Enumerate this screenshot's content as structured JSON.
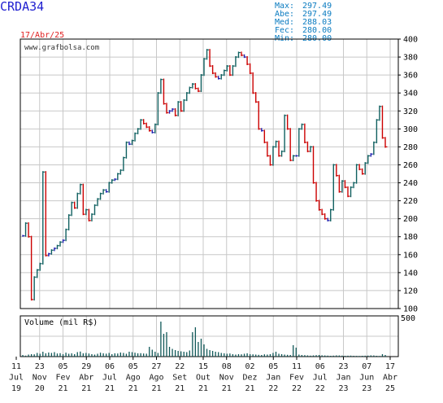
{
  "header": {
    "ticker": "CRDA34",
    "date": "17/Abr/25",
    "website": "www.grafbolsa.com",
    "stats": [
      {
        "label": "Max:",
        "value": "297.49"
      },
      {
        "label": "Abe:",
        "value": "297.49"
      },
      {
        "label": "Med:",
        "value": "288.03"
      },
      {
        "label": "Fec:",
        "value": "280.00"
      },
      {
        "label": "Min:",
        "value": "280.00"
      }
    ]
  },
  "colors": {
    "up": "#106060",
    "mid": "#2020b0",
    "down": "#cc0000",
    "grid": "#c8c8c8",
    "volume": "#105858",
    "ticker": "#1f1fd0",
    "stats": "#0a7bc0"
  },
  "chart_data": {
    "type": "line",
    "y_axis": {
      "min": 100,
      "max": 400,
      "ticks": [
        "100",
        "120",
        "140",
        "160",
        "180",
        "200",
        "220",
        "240",
        "260",
        "280",
        "300",
        "320",
        "340",
        "360",
        "380",
        "400"
      ]
    },
    "x_axis": {
      "ticks": [
        {
          "day": "11",
          "month": "Jul",
          "year": "19"
        },
        {
          "day": "23",
          "month": "Nov",
          "year": "20"
        },
        {
          "day": "05",
          "month": "Fev",
          "year": "21"
        },
        {
          "day": "29",
          "month": "Abr",
          "year": "21"
        },
        {
          "day": "06",
          "month": "Jul",
          "year": "21"
        },
        {
          "day": "05",
          "month": "Ago",
          "year": "21"
        },
        {
          "day": "27",
          "month": "Ago",
          "year": "21"
        },
        {
          "day": "22",
          "month": "Set",
          "year": "21"
        },
        {
          "day": "15",
          "month": "Out",
          "year": "21"
        },
        {
          "day": "08",
          "month": "Nov",
          "year": "21"
        },
        {
          "day": "02",
          "month": "Dez",
          "year": "21"
        },
        {
          "day": "05",
          "month": "Jan",
          "year": "22"
        },
        {
          "day": "11",
          "month": "Fev",
          "year": "22"
        },
        {
          "day": "06",
          "month": "Jul",
          "year": "22"
        },
        {
          "day": "23",
          "month": "Jan",
          "year": "23"
        },
        {
          "day": "07",
          "month": "Jun",
          "year": "23"
        },
        {
          "day": "17",
          "month": "Abr",
          "year": "25"
        }
      ]
    },
    "volume_axis": {
      "label": "Volume (mil R$)",
      "max_label": "500",
      "max": 500
    },
    "series": [
      {
        "values": [
          181,
          195,
          180,
          110,
          135,
          143,
          150,
          252,
          159,
          161,
          165,
          167,
          170,
          174,
          176,
          188,
          204,
          218,
          212,
          228,
          238,
          205,
          210,
          198,
          205,
          215,
          222,
          228,
          232,
          230,
          240,
          243,
          244,
          250,
          254,
          268,
          285,
          283,
          287,
          295,
          300,
          310,
          306,
          302,
          298,
          296,
          305,
          340,
          355,
          328,
          318,
          320,
          322,
          315,
          330,
          320,
          332,
          340,
          346,
          350,
          345,
          342,
          360,
          378,
          388,
          370,
          362,
          358,
          356,
          360,
          365,
          370,
          360,
          370,
          380,
          385,
          382,
          380,
          372,
          362,
          340,
          330,
          300,
          298,
          285,
          270,
          260,
          280,
          286,
          270,
          275,
          315,
          300,
          265,
          270,
          270,
          300,
          305,
          285,
          275,
          280,
          240,
          220,
          210,
          205,
          200,
          198,
          210,
          260,
          248,
          230,
          242,
          235,
          225,
          235,
          240,
          260,
          255,
          250,
          262,
          270,
          272,
          285,
          310,
          325,
          290,
          280
        ]
      }
    ],
    "volume": [
      20,
      12,
      25,
      30,
      28,
      45,
      35,
      60,
      40,
      50,
      45,
      55,
      38,
      42,
      30,
      48,
      35,
      40,
      30,
      55,
      62,
      40,
      45,
      38,
      30,
      25,
      35,
      48,
      40,
      36,
      45,
      30,
      40,
      38,
      50,
      45,
      35,
      60,
      55,
      48,
      40,
      42,
      38,
      36,
      120,
      85,
      60,
      45,
      430,
      280,
      300,
      120,
      95,
      80,
      70,
      65,
      60,
      55,
      75,
      300,
      360,
      180,
      220,
      150,
      95,
      80,
      70,
      60,
      55,
      45,
      40,
      35,
      38,
      30,
      25,
      30,
      28,
      35,
      40,
      30,
      28,
      25,
      22,
      20,
      28,
      25,
      30,
      45,
      60,
      35,
      30,
      25,
      22,
      20,
      140,
      110,
      25,
      20,
      18,
      15,
      12,
      15,
      18,
      20,
      16,
      14,
      12,
      10,
      12,
      15,
      14,
      12,
      10,
      11,
      12,
      10,
      9,
      8,
      10,
      11,
      12,
      15,
      14,
      10,
      8,
      30,
      20
    ]
  }
}
